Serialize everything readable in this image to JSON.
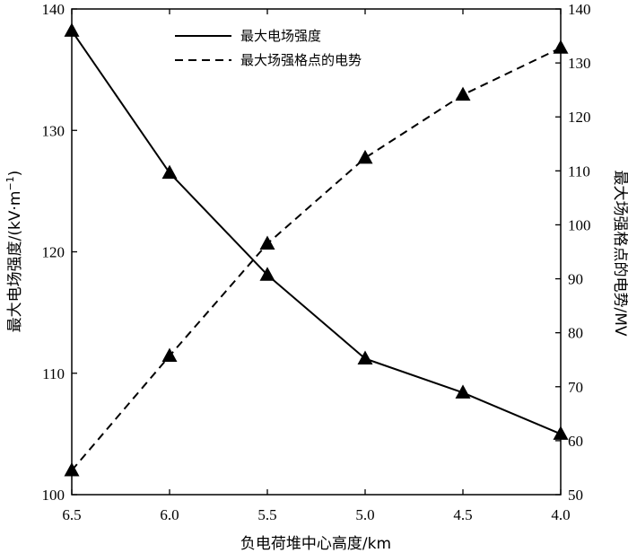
{
  "chart_data": {
    "type": "line",
    "title": "",
    "x": [
      6.5,
      6.0,
      5.5,
      5.0,
      4.5,
      4.0
    ],
    "x_tick_labels": [
      "6.5",
      "6.0",
      "5.5",
      "5.0",
      "4.5",
      "4.0"
    ],
    "xlim": [
      6.5,
      4.0
    ],
    "x_reversed": true,
    "xlabel": "负电荷堆中心高度/km",
    "y_left": {
      "label_main": "最大电场强度/(kV·m",
      "label_sup": "−1",
      "label_close": ")",
      "lim": [
        100,
        140
      ],
      "ticks": [
        "100",
        "110",
        "120",
        "130",
        "140"
      ]
    },
    "y_right": {
      "label": "最大场强格点的电势/MV",
      "lim": [
        50,
        140
      ],
      "ticks": [
        "50",
        "60",
        "70",
        "80",
        "90",
        "100",
        "110",
        "120",
        "130",
        "140"
      ]
    },
    "series": [
      {
        "name": "最大电场强度",
        "axis": "left",
        "style": "solid",
        "marker": "triangle",
        "values": [
          138.2,
          126.5,
          118.1,
          111.2,
          108.4,
          105.0
        ]
      },
      {
        "name": "最大场强格点的电势",
        "axis": "right",
        "style": "dashed",
        "marker": "triangle",
        "values": [
          54.5,
          75.7,
          96.5,
          112.4,
          124.1,
          132.8
        ]
      }
    ],
    "legend_position": "top-left",
    "grid": false,
    "colors": {
      "line": "#000000",
      "marker": "#000000",
      "background": "#ffffff"
    }
  }
}
